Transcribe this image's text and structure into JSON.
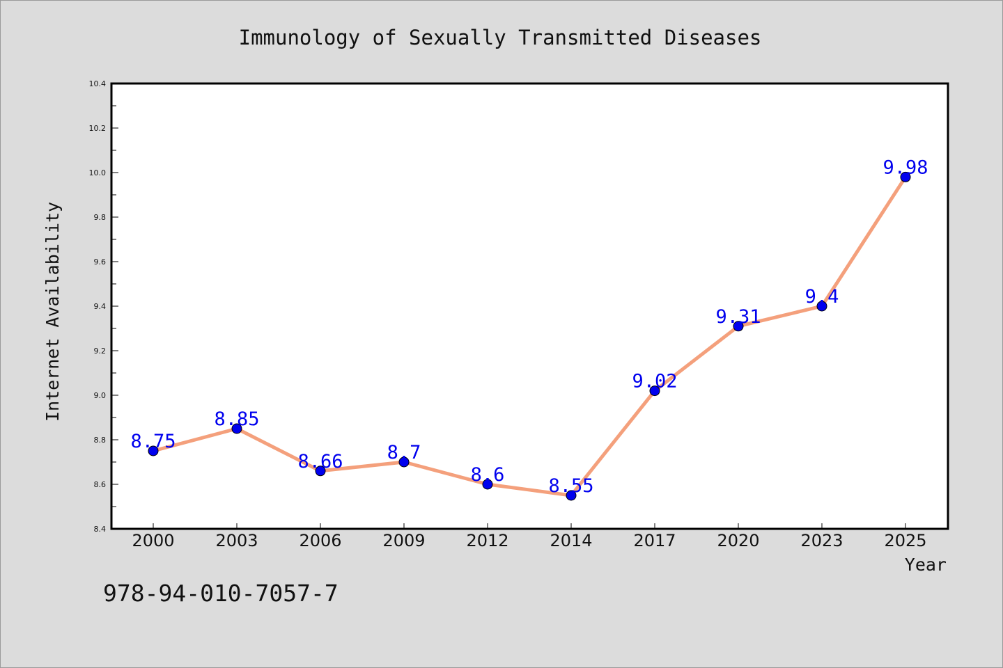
{
  "chart_data": {
    "type": "line",
    "title": "Immunology of Sexually Transmitted Diseases",
    "xlabel": "Year",
    "ylabel": "Internet Availability",
    "categories": [
      "2000",
      "2003",
      "2006",
      "2009",
      "2012",
      "2014",
      "2017",
      "2020",
      "2023",
      "2025"
    ],
    "values": [
      8.75,
      8.85,
      8.66,
      8.7,
      8.6,
      8.55,
      9.02,
      9.31,
      9.4,
      9.98
    ],
    "data_labels": [
      "8.75",
      "8.85",
      "8.66",
      "8.7",
      "8.6",
      "8.55",
      "9.02",
      "9.31",
      "9.4",
      "9.98"
    ],
    "ylim": [
      8.4,
      10.4
    ],
    "yticks": [
      "8.4",
      "8.6",
      "8.8",
      "9.0",
      "9.2",
      "9.4",
      "9.6",
      "9.8",
      "10.0",
      "10.2",
      "10.4"
    ],
    "grid": false,
    "legend": "none",
    "line_color": "#f4a07c",
    "marker_color": "#0000ee",
    "label_color": "#0000ee",
    "background_color": "#dcdcdc",
    "plot_background_color": "#ffffff"
  },
  "footer": {
    "isbn": "978-94-010-7057-7"
  }
}
